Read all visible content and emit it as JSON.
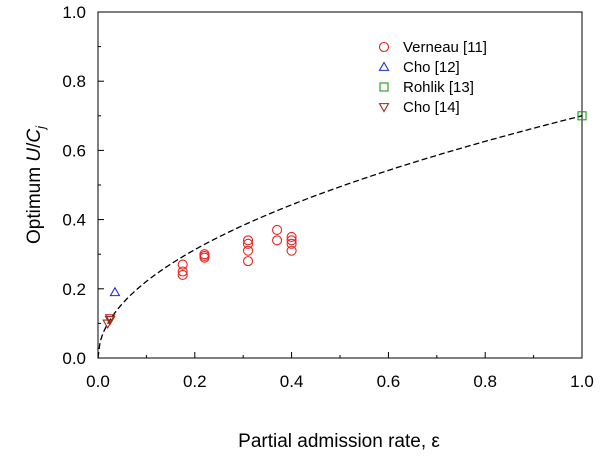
{
  "chart_data": {
    "type": "scatter",
    "title": "",
    "xlabel": "Partial admission rate, ε",
    "ylabel_parts": [
      "Optimum ",
      "U",
      "/",
      "C",
      "j"
    ],
    "xlim": [
      0,
      1
    ],
    "ylim": [
      0,
      1
    ],
    "x_ticks": [
      "0.0",
      "0.2",
      "0.4",
      "0.6",
      "0.8",
      "1.0"
    ],
    "y_ticks": [
      "0.0",
      "0.2",
      "0.4",
      "0.6",
      "0.8",
      "1.0"
    ],
    "grid": false,
    "legend_position": "top-right",
    "series": [
      {
        "name": "Verneau [11]",
        "marker": "circle",
        "color": "#e8251f",
        "points": [
          [
            0.175,
            0.27
          ],
          [
            0.175,
            0.25
          ],
          [
            0.175,
            0.24
          ],
          [
            0.22,
            0.3
          ],
          [
            0.22,
            0.295
          ],
          [
            0.22,
            0.29
          ],
          [
            0.31,
            0.34
          ],
          [
            0.31,
            0.33
          ],
          [
            0.31,
            0.31
          ],
          [
            0.31,
            0.28
          ],
          [
            0.37,
            0.37
          ],
          [
            0.37,
            0.34
          ],
          [
            0.4,
            0.35
          ],
          [
            0.4,
            0.34
          ],
          [
            0.4,
            0.33
          ],
          [
            0.4,
            0.31
          ]
        ]
      },
      {
        "name": "Cho [12]",
        "marker": "triangle-up",
        "color": "#1f2fd6",
        "points": [
          [
            0.035,
            0.19
          ]
        ]
      },
      {
        "name": "Rohlik [13]",
        "marker": "square",
        "color": "#1a9a1a",
        "points": [
          [
            1.0,
            0.7
          ]
        ]
      },
      {
        "name": "Cho [14]",
        "marker": "triangle-down",
        "color": "#9e2a1a",
        "points": [
          [
            0.025,
            0.115
          ],
          [
            0.025,
            0.11
          ],
          [
            0.02,
            0.1
          ]
        ]
      }
    ],
    "fit_curve": {
      "style": "dashed",
      "color": "#000000",
      "formula": "0.7 * x^0.5",
      "coefficient": 0.7,
      "exponent": 0.5
    }
  }
}
